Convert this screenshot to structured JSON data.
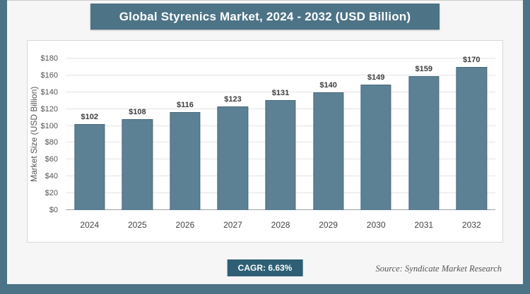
{
  "title": "Global Styrenics Market, 2024 - 2032 (USD Billion)",
  "footer": {
    "cagr_label": "CAGR: 6.63%",
    "source": "Source: Syndicate Market Research"
  },
  "colors": {
    "accent": "#4d7386",
    "bar": "#5d8194",
    "badge": "#2e5f75",
    "grid": "#e4e4e4"
  },
  "chart_data": {
    "type": "bar",
    "title": "Global Styrenics Market, 2024 - 2032 (USD Billion)",
    "categories": [
      "2024",
      "2025",
      "2026",
      "2027",
      "2028",
      "2029",
      "2030",
      "2031",
      "2032"
    ],
    "values": [
      102,
      108,
      116,
      123,
      131,
      140,
      149,
      159,
      170
    ],
    "value_labels": [
      "$102",
      "$108",
      "$116",
      "$123",
      "$131",
      "$140",
      "$149",
      "$159",
      "$170"
    ],
    "xlabel": "",
    "ylabel": "Market Size (USD Billion)",
    "ylim": [
      0,
      180
    ],
    "yticks": [
      0,
      20,
      40,
      60,
      80,
      100,
      120,
      140,
      160,
      180
    ],
    "ytick_labels": [
      "$0",
      "$20",
      "$40",
      "$60",
      "$80",
      "$100",
      "$120",
      "$140",
      "$160",
      "$180"
    ],
    "grid": true,
    "legend": false,
    "annotations": [
      "CAGR: 6.63%"
    ]
  }
}
